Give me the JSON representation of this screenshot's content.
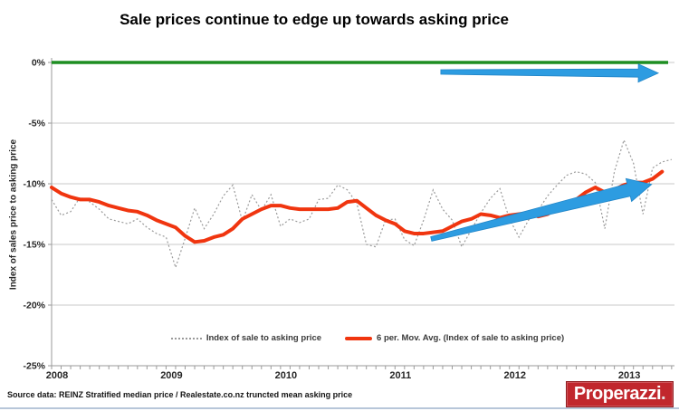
{
  "title": "Sale prices continue to edge up towards asking price",
  "source_note": "Source data: REINZ Stratified median price / Realestate.co.nz truncted mean asking price",
  "logo": {
    "text": "Properazzi",
    "suffix": "."
  },
  "colors": {
    "moving_average_red": "#f0350f",
    "index_dotted_gray": "#9a9a9a",
    "zero_baseline_green": "#1e8e22",
    "arrow_blue": "#2d9ce1",
    "gridline_gray": "#c9c9c9",
    "axis_gray": "#9a9a9a",
    "logo_red": "#c1272d"
  },
  "chart_data": {
    "type": "line",
    "title": "Sale prices continue to edge up towards asking price",
    "xlabel": "",
    "ylabel": "Index of sales price to asking price",
    "ylim": [
      -25,
      0
    ],
    "grid": "horizontal",
    "legend_position": "bottom-center",
    "ytick_values": [
      0,
      -5,
      -10,
      -15,
      -20,
      -25
    ],
    "ytick_labels": [
      "0%",
      "-5%",
      "-10%",
      "-15%",
      "-20%",
      "-25%"
    ],
    "xtick_labels": [
      "2008",
      "2009",
      "2010",
      "2011",
      "2012",
      "2013"
    ],
    "x_start": "2008-01",
    "x_frequency": "monthly",
    "baseline": {
      "value": 0,
      "color": "#1e8e22"
    },
    "series": [
      {
        "name": "Index of sale to asking price",
        "style": "dotted",
        "color": "#9a9a9a",
        "values": [
          -11.3,
          -12.6,
          -12.3,
          -11.1,
          -11.5,
          -12.1,
          -12.9,
          -13.1,
          -13.3,
          -12.9,
          -13.6,
          -14.1,
          -14.4,
          -16.9,
          -14.5,
          -12.0,
          -13.7,
          -12.5,
          -11.0,
          -10.1,
          -13.1,
          -10.9,
          -12.2,
          -10.9,
          -13.5,
          -12.9,
          -13.2,
          -12.9,
          -11.3,
          -11.2,
          -10.1,
          -10.5,
          -11.6,
          -15.0,
          -15.2,
          -13.0,
          -12.9,
          -14.6,
          -15.1,
          -13.0,
          -10.5,
          -12.1,
          -13.0,
          -15.2,
          -13.8,
          -12.4,
          -11.2,
          -10.4,
          -12.9,
          -14.4,
          -13.0,
          -12.2,
          -11.0,
          -10.1,
          -9.3,
          -9.0,
          -9.2,
          -9.9,
          -13.7,
          -9.0,
          -6.4,
          -8.3,
          -12.5,
          -8.7,
          -8.2,
          -8.0
        ]
      },
      {
        "name": "6 per. Mov. Avg. (Index of sale to asking price)",
        "style": "solid-thick",
        "color": "#f0350f",
        "values": [
          -10.3,
          -10.8,
          -11.1,
          -11.3,
          -11.3,
          -11.5,
          -11.8,
          -12.0,
          -12.2,
          -12.3,
          -12.6,
          -13.0,
          -13.3,
          -13.6,
          -14.3,
          -14.8,
          -14.7,
          -14.4,
          -14.2,
          -13.7,
          -12.9,
          -12.5,
          -12.1,
          -11.8,
          -11.8,
          -12.0,
          -12.1,
          -12.1,
          -12.1,
          -12.1,
          -12.0,
          -11.5,
          -11.4,
          -12.0,
          -12.6,
          -13.0,
          -13.3,
          -13.9,
          -14.1,
          -14.1,
          -14.0,
          -13.9,
          -13.5,
          -13.1,
          -12.9,
          -12.5,
          -12.6,
          -12.8,
          -12.6,
          -12.5,
          -12.4,
          -12.7,
          -12.5,
          -12.0,
          -11.6,
          -11.3,
          -10.7,
          -10.3,
          -10.7,
          -10.5,
          -10.1,
          -9.9,
          -9.9,
          -9.6,
          -9.0
        ]
      }
    ],
    "annotations": [
      {
        "name": "flat-trend-arrow",
        "type": "arrow",
        "x1_month": 40.8,
        "y1": -0.78,
        "x2_month": 63.6,
        "y2": -0.88,
        "color": "#2d9ce1"
      },
      {
        "name": "rising-trend-arrow",
        "type": "arrow",
        "x1_month": 39.8,
        "y1": -14.55,
        "x2_month": 62.9,
        "y2": -10.05,
        "color": "#2d9ce1"
      }
    ]
  }
}
